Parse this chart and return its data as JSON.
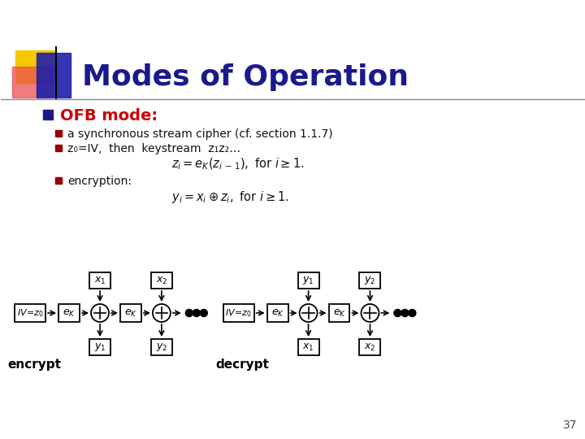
{
  "title": "Modes of Operation",
  "title_color": "#1a1a8c",
  "bg_color": "#ffffff",
  "bullet1": "OFB mode:",
  "bullet1_color": "#cc0000",
  "sub1": "a synchronous stream cipher (cf. section 1.1.7)",
  "sub2": "z₀=IV,  then  keystream  z₁z₂…",
  "sub3": "encryption:",
  "page_num": "37",
  "enc_label": "encrypt",
  "dec_label": "decrypt",
  "deco_yellow": "#f5c800",
  "deco_red": "#e85050",
  "deco_blue": "#2020aa",
  "line_color": "#888888",
  "text_color": "#111111"
}
